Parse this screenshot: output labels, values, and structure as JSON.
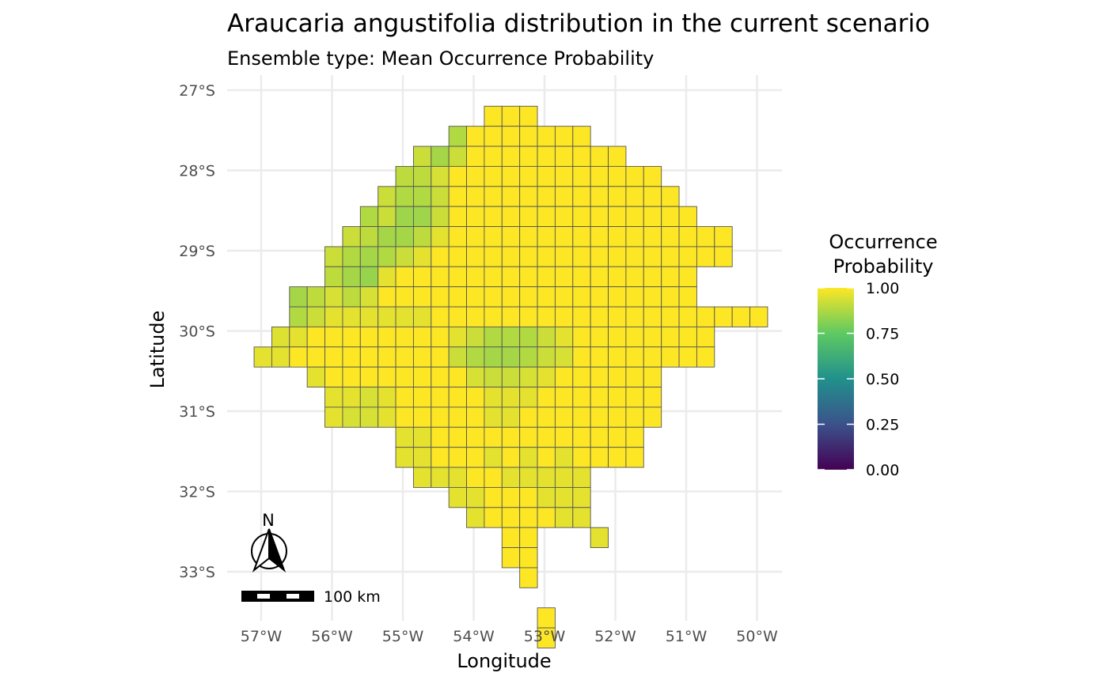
{
  "chart_data": {
    "type": "heatmap",
    "title": "Araucaria angustifolia distribution in the current scenario",
    "subtitle": "Ensemble type: Mean Occurrence Probability",
    "xlabel": "Longitude",
    "ylabel": "Latitude",
    "x_ticks": [
      {
        "value": -57,
        "label": "57°W"
      },
      {
        "value": -56,
        "label": "56°W"
      },
      {
        "value": -55,
        "label": "55°W"
      },
      {
        "value": -54,
        "label": "54°W"
      },
      {
        "value": -53,
        "label": "53°W"
      },
      {
        "value": -52,
        "label": "52°W"
      },
      {
        "value": -51,
        "label": "51°W"
      },
      {
        "value": -50,
        "label": "50°W"
      }
    ],
    "y_ticks": [
      {
        "value": -27,
        "label": "27°S"
      },
      {
        "value": -28,
        "label": "28°S"
      },
      {
        "value": -29,
        "label": "29°S"
      },
      {
        "value": -30,
        "label": "30°S"
      },
      {
        "value": -31,
        "label": "31°S"
      },
      {
        "value": -32,
        "label": "32°S"
      },
      {
        "value": -33,
        "label": "33°S"
      }
    ],
    "xlim": [
      -57.45,
      -49.75
    ],
    "ylim": [
      -33.65,
      -26.65
    ],
    "grid": true,
    "cell_size_deg": 0.25,
    "legend": {
      "title_line1": "Occurrence",
      "title_line2": "Probability",
      "breaks": [
        "1.00",
        "0.75",
        "0.50",
        "0.25",
        "0.00"
      ],
      "colors": [
        "#440154",
        "#3b528b",
        "#21918c",
        "#5ec962",
        "#fde725"
      ],
      "range": [
        0,
        1
      ],
      "placement": "right"
    },
    "north_arrow_label": "N",
    "scale_bar_label": "100 km",
    "cells": [
      {
        "row": 0,
        "col_start": 13,
        "values": [
          1,
          1,
          1
        ]
      },
      {
        "row": 1,
        "col_start": 11,
        "values": [
          0.88,
          1,
          1,
          1,
          1,
          1,
          1,
          1
        ]
      },
      {
        "row": 2,
        "col_start": 9,
        "values": [
          0.92,
          0.86,
          0.92,
          1,
          1,
          1,
          1,
          1,
          1,
          1,
          1,
          1
        ]
      },
      {
        "row": 3,
        "col_start": 8,
        "values": [
          0.9,
          0.9,
          0.94,
          1,
          1,
          1,
          1,
          1,
          1,
          1,
          1,
          1,
          1,
          1,
          1
        ]
      },
      {
        "row": 4,
        "col_start": 7,
        "values": [
          0.92,
          0.88,
          0.88,
          0.92,
          1,
          1,
          1,
          1,
          1,
          1,
          1,
          1,
          1,
          1,
          1,
          1,
          1
        ]
      },
      {
        "row": 5,
        "col_start": 6,
        "values": [
          0.88,
          0.92,
          0.85,
          0.85,
          0.92,
          1,
          1,
          1,
          1,
          1,
          1,
          1,
          1,
          1,
          1,
          1,
          1,
          1,
          1
        ]
      },
      {
        "row": 6,
        "col_start": 5,
        "values": [
          0.92,
          0.9,
          0.86,
          0.86,
          0.9,
          0.96,
          1,
          1,
          1,
          1,
          1,
          1,
          1,
          1,
          1,
          1,
          1,
          1,
          1,
          1,
          1,
          1
        ]
      },
      {
        "row": 7,
        "col_start": 4,
        "values": [
          0.92,
          0.88,
          0.86,
          0.88,
          0.92,
          0.96,
          1,
          1,
          1,
          1,
          1,
          1,
          1,
          1,
          1,
          1,
          1,
          1,
          1,
          1,
          1,
          1,
          1
        ]
      },
      {
        "row": 8,
        "col_start": 4,
        "values": [
          0.9,
          0.86,
          0.84,
          0.96,
          1,
          1,
          1,
          1,
          1,
          1,
          1,
          1,
          1,
          1,
          1,
          1,
          1,
          1,
          1,
          1,
          1
        ]
      },
      {
        "row": 9,
        "col_start": 2,
        "values": [
          0.86,
          0.9,
          0.94,
          0.9,
          0.94,
          1,
          1,
          1,
          1,
          1,
          1,
          1,
          1,
          1,
          1,
          1,
          1,
          1,
          1,
          1,
          1,
          1,
          1
        ]
      },
      {
        "row": 10,
        "col_start": 2,
        "values": [
          0.88,
          0.92,
          0.96,
          0.96,
          0.96,
          0.96,
          0.96,
          0.96,
          1,
          1,
          1,
          1,
          1,
          1,
          1,
          1,
          1,
          1,
          1,
          1,
          1,
          1,
          1,
          1,
          1,
          1,
          1
        ]
      },
      {
        "row": 11,
        "col_start": 1,
        "values": [
          0.95,
          0.96,
          1,
          1,
          1,
          1,
          1,
          1,
          1,
          1,
          0.96,
          0.92,
          0.88,
          0.88,
          0.88,
          0.92,
          0.96,
          1,
          1,
          1,
          1,
          1,
          1,
          1,
          1
        ]
      },
      {
        "row": 12,
        "col_start": 0,
        "values": [
          0.96,
          0.96,
          1,
          1,
          1,
          1,
          1,
          1,
          1,
          1,
          1,
          0.92,
          0.88,
          0.86,
          0.86,
          0.88,
          0.92,
          0.94,
          1,
          1,
          1,
          1,
          1,
          1,
          1,
          1
        ]
      },
      {
        "row": 13,
        "col_start": 3,
        "values": [
          0.96,
          1,
          1,
          1,
          1,
          1,
          1,
          1,
          1,
          0.94,
          0.92,
          0.92,
          0.94,
          0.96,
          1,
          1,
          1,
          1,
          1,
          1
        ]
      },
      {
        "row": 14,
        "col_start": 4,
        "values": [
          0.96,
          0.96,
          0.94,
          0.96,
          1,
          1,
          1,
          1,
          1,
          0.96,
          0.96,
          0.96,
          1,
          1,
          1,
          1,
          1,
          1,
          1
        ]
      },
      {
        "row": 15,
        "col_start": 4,
        "values": [
          0.96,
          0.94,
          0.94,
          0.96,
          1,
          1,
          1,
          1,
          1,
          0.96,
          0.96,
          1,
          1,
          1,
          1,
          1,
          1,
          1,
          1
        ]
      },
      {
        "row": 16,
        "col_start": 8,
        "values": [
          0.96,
          0.96,
          1,
          1,
          1,
          1,
          1,
          1,
          1,
          1,
          1,
          1,
          1,
          1
        ]
      },
      {
        "row": 17,
        "col_start": 8,
        "values": [
          0.96,
          0.96,
          1,
          1,
          1,
          0.96,
          1,
          0.96,
          1,
          0.96,
          1,
          1,
          1,
          1
        ]
      },
      {
        "row": 18,
        "col_start": 9,
        "values": [
          0.96,
          0.96,
          0.96,
          1,
          1,
          0.96,
          0.96,
          0.96,
          0.96,
          0.96
        ]
      },
      {
        "row": 19,
        "col_start": 11,
        "values": [
          0.96,
          0.96,
          1,
          1,
          1,
          0.96,
          0.96,
          0.96
        ]
      },
      {
        "row": 20,
        "col_start": 12,
        "values": [
          0.96,
          1,
          1,
          1,
          1,
          0.96,
          0.96
        ]
      },
      {
        "row": 21,
        "col_start": 14,
        "values": [
          1,
          1
        ]
      },
      {
        "row": 21,
        "col_start": 19,
        "values": [
          0.96
        ]
      },
      {
        "row": 22,
        "col_start": 14,
        "values": [
          1,
          1
        ]
      },
      {
        "row": 23,
        "col_start": 15,
        "values": [
          1
        ]
      },
      {
        "row": 25,
        "col_start": 16,
        "values": [
          1
        ]
      },
      {
        "row": 26,
        "col_start": 16,
        "values": [
          1
        ]
      }
    ]
  }
}
